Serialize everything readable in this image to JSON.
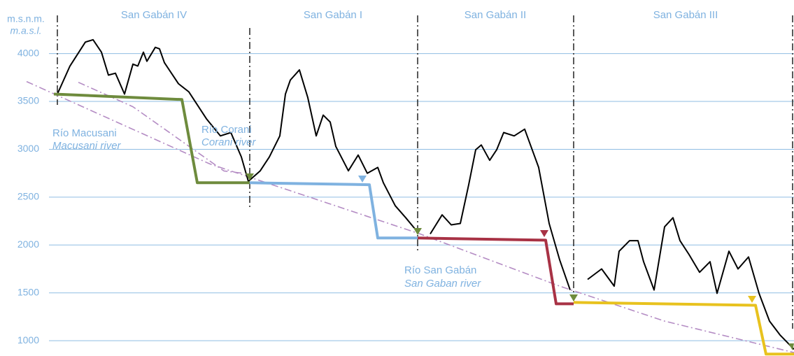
{
  "chart_data": {
    "type": "line",
    "y_axis_label": [
      "m.s.n.m.",
      "m.a.s.l."
    ],
    "sections": [
      "San Gabán IV",
      "San Gabán I",
      "San Gabán II",
      "San Gabán III"
    ],
    "annotations": [
      [
        "Río Macusani",
        "Macusani river"
      ],
      [
        "Río Corani",
        "Corani river"
      ],
      [
        "Río San Gabán",
        "San Gaban river"
      ]
    ],
    "xlim": [
      0,
      1100
    ],
    "ylim": [
      840,
      4560
    ],
    "yticks": [
      1000,
      1500,
      2000,
      2500,
      3000,
      3500,
      4000
    ],
    "grid": true,
    "series": [
      {
        "color": "#b48cc4",
        "style": "dashdot",
        "x": [
          3,
          265,
          565,
          765,
          915,
          1100
        ],
        "values": [
          3708,
          2847,
          2117,
          1570,
          1205,
          876
        ]
      },
      {
        "color": "#b48cc4",
        "style": "dashdot",
        "x": [
          77,
          155,
          285,
          310
        ],
        "values": [
          3700,
          3445,
          2774,
          2752
        ]
      },
      {
        "color": "#000000",
        "style": "solid",
        "x": [
          47,
          65,
          87,
          98,
          110,
          120,
          130,
          143,
          155,
          162,
          170,
          175,
          187,
          193,
          200,
          220,
          235,
          260,
          280,
          295,
          310,
          320,
          337,
          350,
          365,
          373,
          380,
          393,
          405,
          417,
          427,
          437,
          445,
          463,
          477,
          490,
          505,
          513,
          530,
          545,
          558,
          570,
          580,
          597,
          610,
          623,
          635,
          645,
          653,
          665,
          675,
          685,
          700,
          715,
          735,
          750,
          765,
          780,
          790,
          805,
          825,
          843,
          850,
          865,
          877,
          885,
          900,
          915,
          927,
          937,
          950,
          965,
          980,
          990,
          1007,
          1020,
          1035,
          1050,
          1065,
          1080,
          1100
        ],
        "values": [
          3577,
          3870,
          4120,
          4145,
          4015,
          3775,
          3795,
          3577,
          3890,
          3870,
          4015,
          3920,
          4065,
          4050,
          3905,
          3686,
          3600,
          3320,
          3140,
          3175,
          2920,
          2665,
          2775,
          2920,
          3140,
          3577,
          3723,
          3830,
          3540,
          3140,
          3357,
          3285,
          3030,
          2775,
          2940,
          2750,
          2810,
          2650,
          2410,
          2285,
          2170,
          null,
          2115,
          2315,
          2210,
          2225,
          2630,
          2995,
          3045,
          2885,
          2995,
          3175,
          3140,
          3210,
          2810,
          2225,
          1845,
          1530,
          null,
          1640,
          1750,
          1570,
          1935,
          2045,
          2045,
          1825,
          1530,
          2190,
          2285,
          2045,
          1900,
          1715,
          1825,
          1495,
          1935,
          1750,
          1875,
          1495,
          1205,
          1060,
          910
        ]
      },
      {
        "color": "#6e8b3d",
        "style": "thick",
        "x": [
          42,
          225,
          247,
          322
        ],
        "values": [
          3577,
          3520,
          2650,
          2650
        ]
      },
      {
        "color": "#7fb2e0",
        "style": "thick",
        "x": [
          322,
          493,
          505,
          562
        ],
        "values": [
          2650,
          2630,
          2073,
          2073
        ]
      },
      {
        "color": "#a83245",
        "style": "thick",
        "x": [
          562,
          745,
          760,
          785
        ],
        "values": [
          2073,
          2050,
          1385,
          1385
        ]
      },
      {
        "color": "#e8c21e",
        "style": "thick",
        "x": [
          785,
          1045,
          1060,
          1100
        ],
        "values": [
          1400,
          1370,
          860,
          860
        ]
      }
    ]
  }
}
